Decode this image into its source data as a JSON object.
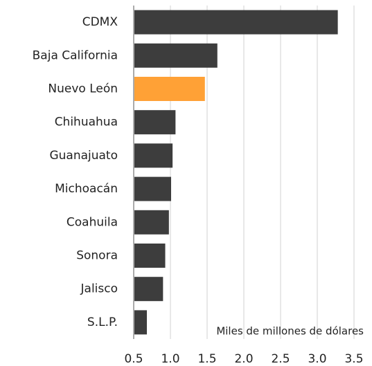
{
  "chart_data": {
    "type": "barh",
    "categories": [
      "CDMX",
      "Baja California",
      "Nuevo León",
      "Chihuahua",
      "Guanajuato",
      "Michoacán",
      "Coahuila",
      "Sonora",
      "Jalisco",
      "S.L.P."
    ],
    "values": [
      3.27,
      1.63,
      1.46,
      1.06,
      1.02,
      1.0,
      0.97,
      0.92,
      0.89,
      0.67
    ],
    "colors": [
      "#3d3d3d",
      "#3d3d3d",
      "#ffa136",
      "#3d3d3d",
      "#3d3d3d",
      "#3d3d3d",
      "#3d3d3d",
      "#3d3d3d",
      "#3d3d3d",
      "#3d3d3d"
    ],
    "x_label": "Miles de millones de dólares",
    "xlim": [
      0.5,
      3.5
    ],
    "xticks": [
      0.5,
      {
        "value": 1,
        "label": "1.0"
      },
      1.5,
      {
        "value": 2,
        "label": "2.0"
      },
      2.5,
      {
        "value": 3,
        "label": "3.0"
      },
      3.5
    ],
    "grid": true
  }
}
